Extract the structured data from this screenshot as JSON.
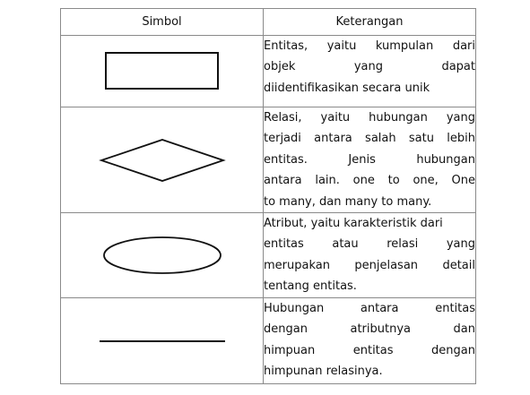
{
  "table": {
    "headers": [
      "Simbol",
      "Keterangan"
    ],
    "rows": [
      {
        "symbol": "rectangle-icon",
        "lines": [
          "Entitas, yaitu kumpulan dari",
          "objek yang dapat",
          "diidentifikasikan secara unik"
        ]
      },
      {
        "symbol": "diamond-icon",
        "lines": [
          "Relasi, yaitu hubungan yang",
          "terjadi antara salah satu lebih",
          "entitas. Jenis hubungan",
          "antara lain. one to one, One",
          "to many, dan many to many."
        ]
      },
      {
        "symbol": "ellipse-icon",
        "lines": [
          "Atribut, yaitu karakteristik dari",
          "entitas atau relasi yang",
          "merupakan penjelasan detail",
          "tentang entitas."
        ]
      },
      {
        "symbol": "line-icon",
        "lines": [
          "Hubungan antara entitas",
          "dengan atributnya dan",
          "himpuan entitas dengan",
          "himpunan relasinya."
        ]
      }
    ]
  }
}
